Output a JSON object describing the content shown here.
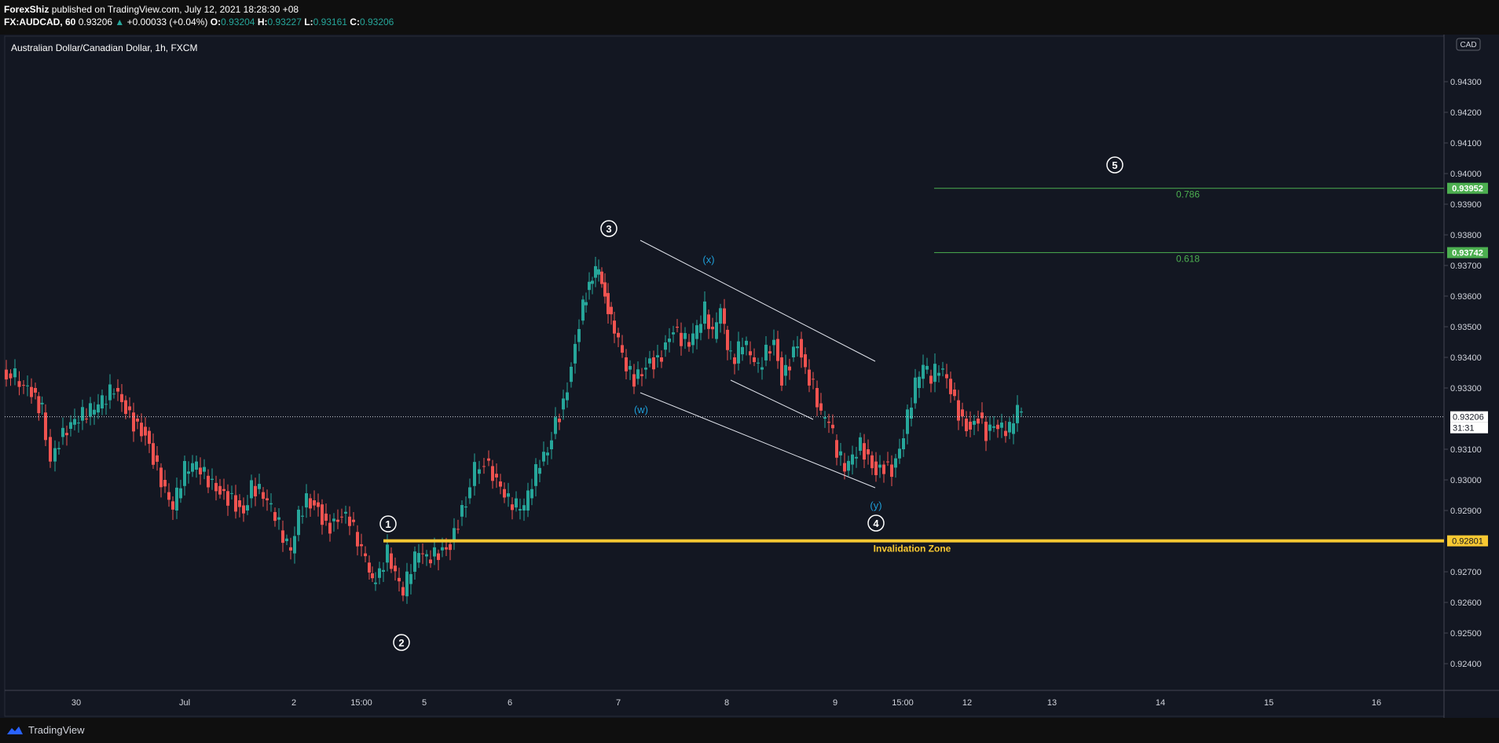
{
  "header": {
    "author": "ForexShiz",
    "published_text": "published on TradingView.com, July 12, 2021 18:28:30 +08",
    "symbol_interval": "FX:AUDCAD, 60",
    "last": "0.93206",
    "change": "+0.00033 (+0.04%)",
    "open_label": "O:",
    "open": "0.93204",
    "high_label": "H:",
    "high": "0.93227",
    "low_label": "L:",
    "low": "0.93161",
    "close_label": "C:",
    "close": "0.93206"
  },
  "chart": {
    "legend_title": "Australian Dollar/Canadian Dollar, 1h, FXCM",
    "currency_label": "CAD",
    "price_axis": [
      {
        "label": "0.94300",
        "v": 0.943
      },
      {
        "label": "0.94200",
        "v": 0.942
      },
      {
        "label": "0.94100",
        "v": 0.941
      },
      {
        "label": "0.94000",
        "v": 0.94
      },
      {
        "label": "0.93900",
        "v": 0.939
      },
      {
        "label": "0.93800",
        "v": 0.938
      },
      {
        "label": "0.93700",
        "v": 0.937
      },
      {
        "label": "0.93600",
        "v": 0.936
      },
      {
        "label": "0.93500",
        "v": 0.935
      },
      {
        "label": "0.93400",
        "v": 0.934
      },
      {
        "label": "0.93300",
        "v": 0.933
      },
      {
        "label": "0.93100",
        "v": 0.931
      },
      {
        "label": "0.93000",
        "v": 0.93
      },
      {
        "label": "0.92900",
        "v": 0.929
      },
      {
        "label": "0.92700",
        "v": 0.927
      },
      {
        "label": "0.92600",
        "v": 0.926
      },
      {
        "label": "0.92500",
        "v": 0.925
      },
      {
        "label": "0.92400",
        "v": 0.924
      }
    ],
    "time_axis": [
      "30",
      "Jul",
      "2",
      "15:00",
      "5",
      "6",
      "7",
      "8",
      "9",
      "15:00",
      "12",
      "13",
      "14",
      "15",
      "16"
    ],
    "current_price_badge": "0.93206",
    "countdown": "31:31",
    "fib_levels": [
      {
        "ratio": "0.786",
        "price": "0.93952",
        "v": 0.93952
      },
      {
        "ratio": "0.618",
        "price": "0.93742",
        "v": 0.93742
      }
    ],
    "invalidation": {
      "label": "Invalidation Zone",
      "price": "0.92801",
      "v": 0.92801
    },
    "wave_labels": [
      "1",
      "2",
      "3",
      "4",
      "5"
    ],
    "sub_wave_labels": [
      "(w)",
      "(x)",
      "(y)"
    ],
    "colors": {
      "background": "#131722",
      "up": "#26a69a",
      "down": "#ef5350",
      "fib": "#4caf50",
      "invalidation": "#f9c932",
      "sub_wave": "#1e9ed8"
    }
  },
  "footer": {
    "brand": "TradingView"
  }
}
